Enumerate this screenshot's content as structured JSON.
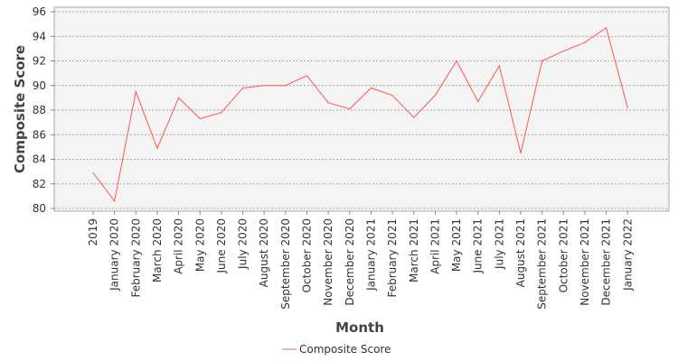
{
  "chart_data": {
    "type": "line",
    "title": "",
    "xlabel": "Month",
    "ylabel": "Composite Score",
    "ylim": [
      80,
      96
    ],
    "yticks": [
      80,
      82,
      84,
      86,
      88,
      90,
      92,
      94,
      96
    ],
    "grid": true,
    "legend_position": "bottom",
    "x": [
      "2019",
      "January 2020",
      "February 2020",
      "March 2020",
      "April 2020",
      "May 2020",
      "June 2020",
      "July 2020",
      "August 2020",
      "September 2020",
      "October 2020",
      "November 2020",
      "December 2020",
      "January 2021",
      "February 2021",
      "March 2021",
      "April 2021",
      "May 2021",
      "June 2021",
      "July 2021",
      "August 2021",
      "September 2021",
      "October 2021",
      "November 2021",
      "December 2021",
      "January 2022"
    ],
    "series": [
      {
        "name": "Composite Score",
        "color": "#ff5555",
        "values": [
          82.9,
          80.6,
          89.5,
          84.9,
          89.0,
          87.3,
          87.8,
          89.8,
          90.0,
          90.0,
          90.8,
          88.6,
          88.1,
          89.8,
          89.2,
          87.4,
          89.2,
          92.0,
          88.7,
          91.6,
          84.5,
          92.0,
          92.8,
          93.5,
          94.7,
          88.2
        ]
      }
    ]
  }
}
